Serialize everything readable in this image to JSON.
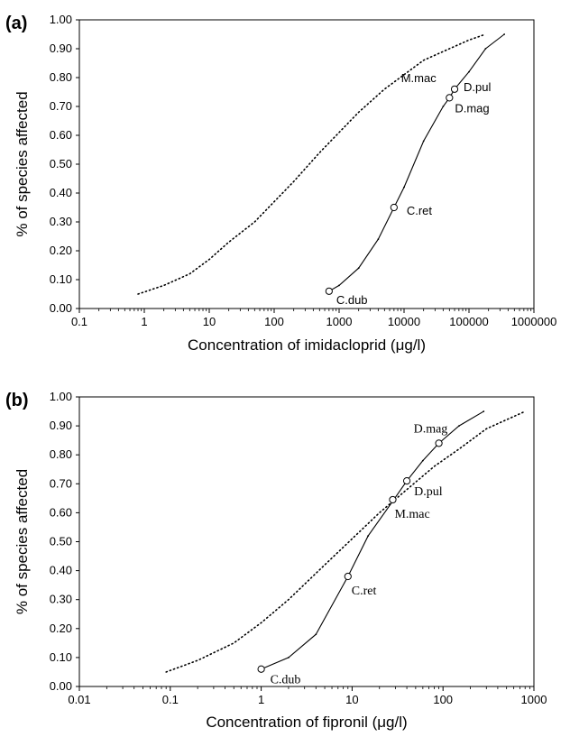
{
  "chart_data": [
    {
      "type": "line",
      "panel_label": "(a)",
      "xlabel": "Concentration of imidacloprid (μg/l)",
      "ylabel": "% of species affected",
      "xscale": "log",
      "xlim": [
        0.1,
        1000000
      ],
      "ylim": [
        0.0,
        1.0
      ],
      "x_ticks": [
        "0.1",
        "1",
        "10",
        "100",
        "1000",
        "10000",
        "100000",
        "1000000"
      ],
      "y_ticks": [
        "0.00",
        "0.10",
        "0.20",
        "0.30",
        "0.40",
        "0.50",
        "0.60",
        "0.70",
        "0.80",
        "0.90",
        "1.00"
      ],
      "series": [
        {
          "style": "dotted",
          "x": [
            0.8,
            2,
            5,
            10,
            20,
            50,
            100,
            200,
            500,
            1000,
            2000,
            5000,
            10000,
            20000,
            50000,
            100000,
            180000
          ],
          "y": [
            0.05,
            0.08,
            0.12,
            0.17,
            0.23,
            0.3,
            0.37,
            0.44,
            0.54,
            0.61,
            0.68,
            0.76,
            0.81,
            0.86,
            0.9,
            0.93,
            0.95
          ]
        },
        {
          "style": "solid",
          "x": [
            700,
            1000,
            2000,
            4000,
            7000,
            10000,
            20000,
            40000,
            50000,
            60000,
            100000,
            180000,
            350000
          ],
          "y": [
            0.06,
            0.08,
            0.14,
            0.24,
            0.35,
            0.42,
            0.58,
            0.7,
            0.73,
            0.76,
            0.82,
            0.9,
            0.95
          ]
        }
      ],
      "points": [
        {
          "label": "C.dub",
          "x": 700,
          "y": 0.06
        },
        {
          "label": "C.ret",
          "x": 7000,
          "y": 0.35
        },
        {
          "label": "D.mag",
          "x": 50000,
          "y": 0.73
        },
        {
          "label": "D.pul",
          "x": 60000,
          "y": 0.76
        }
      ],
      "annotations": [
        {
          "label": "M.mac",
          "x": 9000,
          "y": 0.785
        }
      ]
    },
    {
      "type": "line",
      "panel_label": "(b)",
      "xlabel": "Concentration of fipronil (μg/l)",
      "ylabel": "% of species affected",
      "xscale": "log",
      "xlim": [
        0.01,
        1000
      ],
      "ylim": [
        0.0,
        1.0
      ],
      "x_ticks": [
        "0.01",
        "0.1",
        "1",
        "10",
        "100",
        "1000"
      ],
      "y_ticks": [
        "0.00",
        "0.10",
        "0.20",
        "0.30",
        "0.40",
        "0.50",
        "0.60",
        "0.70",
        "0.80",
        "0.90",
        "1.00"
      ],
      "series": [
        {
          "style": "dotted",
          "x": [
            0.09,
            0.2,
            0.5,
            1,
            2,
            5,
            10,
            20,
            40,
            80,
            150,
            300,
            800
          ],
          "y": [
            0.05,
            0.09,
            0.15,
            0.22,
            0.3,
            0.42,
            0.51,
            0.6,
            0.68,
            0.76,
            0.82,
            0.89,
            0.95
          ]
        },
        {
          "style": "solid",
          "x": [
            1,
            2,
            4,
            9,
            15,
            28,
            40,
            60,
            90,
            150,
            280
          ],
          "y": [
            0.06,
            0.1,
            0.18,
            0.38,
            0.52,
            0.64,
            0.71,
            0.78,
            0.84,
            0.9,
            0.95
          ]
        }
      ],
      "points": [
        {
          "label": "C.dub",
          "x": 1,
          "y": 0.06
        },
        {
          "label": "C.ret",
          "x": 9,
          "y": 0.38
        },
        {
          "label": "M.mac",
          "x": 28,
          "y": 0.645
        },
        {
          "label": "D.pul",
          "x": 40,
          "y": 0.71
        },
        {
          "label": "D.mag",
          "x": 90,
          "y": 0.84
        }
      ]
    }
  ]
}
